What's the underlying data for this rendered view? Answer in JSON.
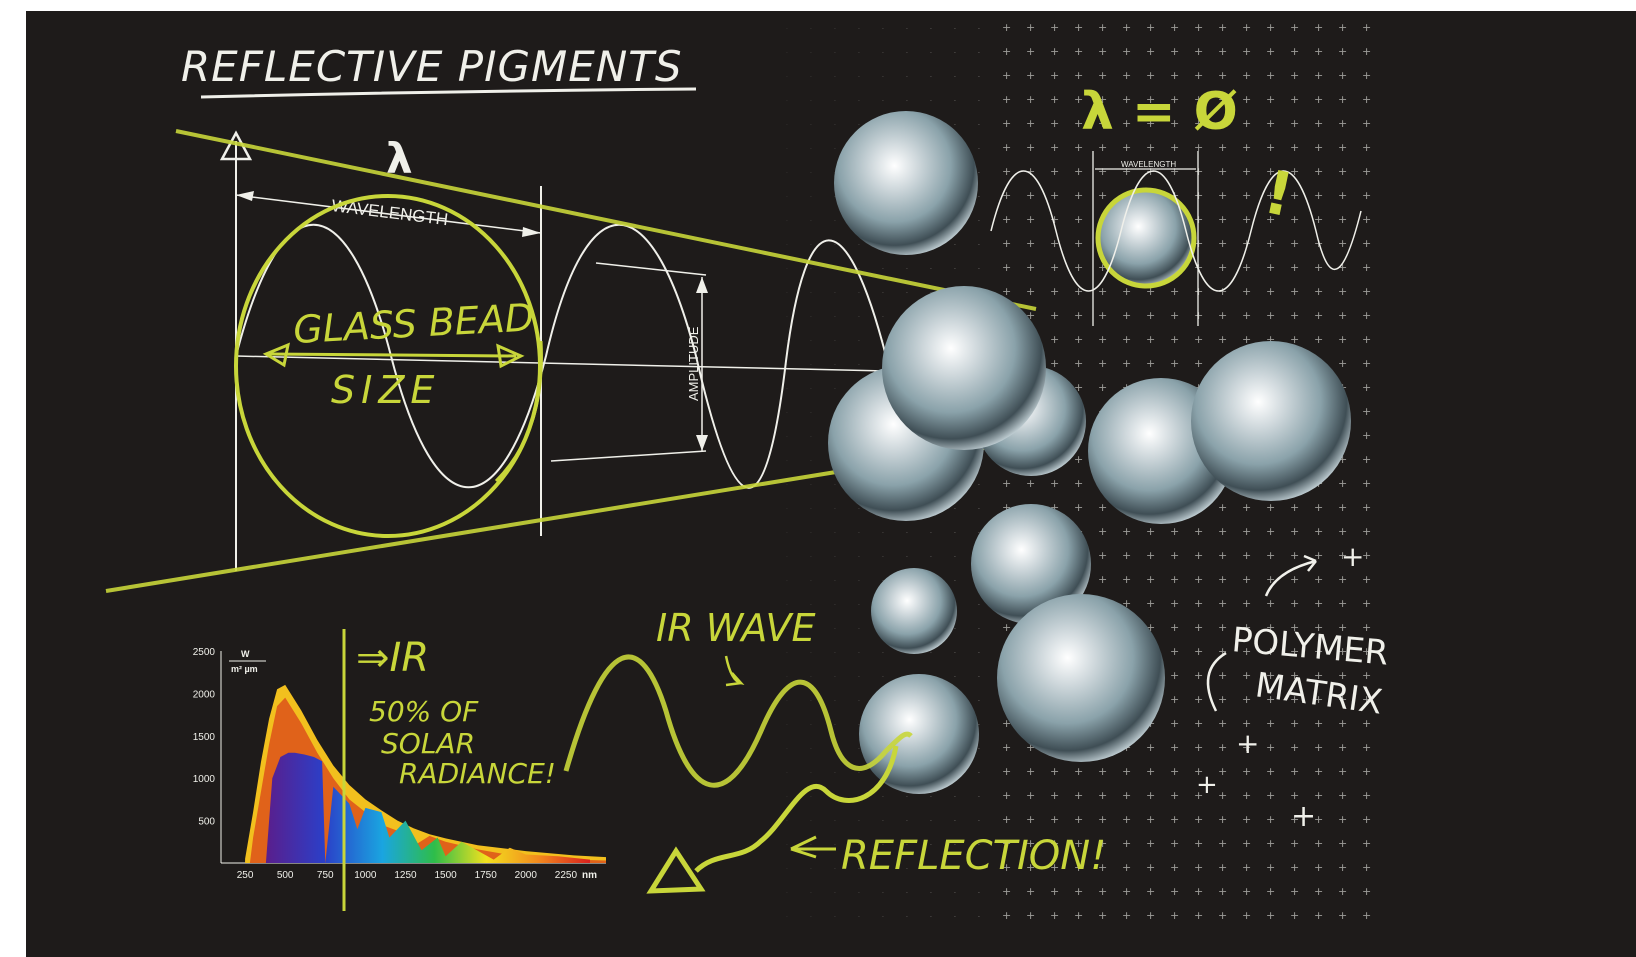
{
  "title": "REFLECTIVE PIGMENTS",
  "labels": {
    "lambda": "λ",
    "wavelength": "WAVELENGTH",
    "glass_bead_size_line1": "GLASS BEAD",
    "glass_bead_size_line2": "SIZE",
    "amplitude": "AMPLITUDE",
    "lambda_equals_diameter": "λ = Ø",
    "exclaim": "!",
    "wavelength_small": "WAVELENGTH",
    "ir_wave": "IR WAVE",
    "ir_arrow": "⇒IR",
    "solar_note_1": "50% OF",
    "solar_note_2": "SOLAR",
    "solar_note_3": "RADIANCE!",
    "reflection": "REFLECTION!",
    "polymer_1": "POLYMER",
    "polymer_2": "MATRIX"
  },
  "colors": {
    "board": "#1e1b1a",
    "chalk": "#f0f0ea",
    "accent": "#c8d63a",
    "orange": "#e0621a",
    "yellow": "#f2c01e"
  },
  "chart_data": {
    "type": "area",
    "ylabel_num": "W",
    "ylabel_den": "m² µm",
    "xunit": "nm",
    "xticks": [
      250,
      500,
      750,
      1000,
      1250,
      1500,
      1750,
      2000,
      2250
    ],
    "yticks": [
      500,
      1000,
      1500,
      2000,
      2500
    ],
    "xlim": [
      100,
      2500
    ],
    "ylim": [
      0,
      2500
    ],
    "series": [
      {
        "x": [
          250,
          300,
          350,
          400,
          450,
          500,
          550,
          600,
          700,
          800,
          900,
          1000,
          1100,
          1200,
          1300,
          1400,
          1500,
          1700,
          2000,
          2300,
          2500
        ],
        "values": [
          50,
          600,
          1200,
          1700,
          2050,
          2100,
          1950,
          1800,
          1450,
          1150,
          920,
          750,
          620,
          500,
          410,
          340,
          290,
          210,
          140,
          90,
          70
        ]
      },
      {
        "x": [
          280,
          300,
          350,
          400,
          450,
          500,
          550,
          600,
          700,
          800,
          900,
          1000,
          1100,
          1200,
          1300,
          1400,
          1500,
          1700,
          2000,
          2300,
          2500
        ],
        "values": [
          0,
          300,
          850,
          1400,
          1850,
          1950,
          1800,
          1650,
          1300,
          1000,
          750,
          600,
          450,
          380,
          200,
          320,
          250,
          160,
          60,
          40,
          30
        ]
      },
      {
        "x": [
          380,
          420,
          470,
          520,
          560,
          620,
          680,
          730,
          750,
          800,
          900,
          950,
          1000,
          1100,
          1150,
          1250,
          1350,
          1450,
          1500,
          1600,
          1800,
          1900,
          2000,
          2200,
          2400
        ],
        "values": [
          0,
          1000,
          1250,
          1300,
          1300,
          1280,
          1250,
          1200,
          0,
          900,
          700,
          400,
          650,
          600,
          300,
          500,
          150,
          300,
          80,
          250,
          40,
          180,
          100,
          80,
          40
        ]
      }
    ]
  }
}
